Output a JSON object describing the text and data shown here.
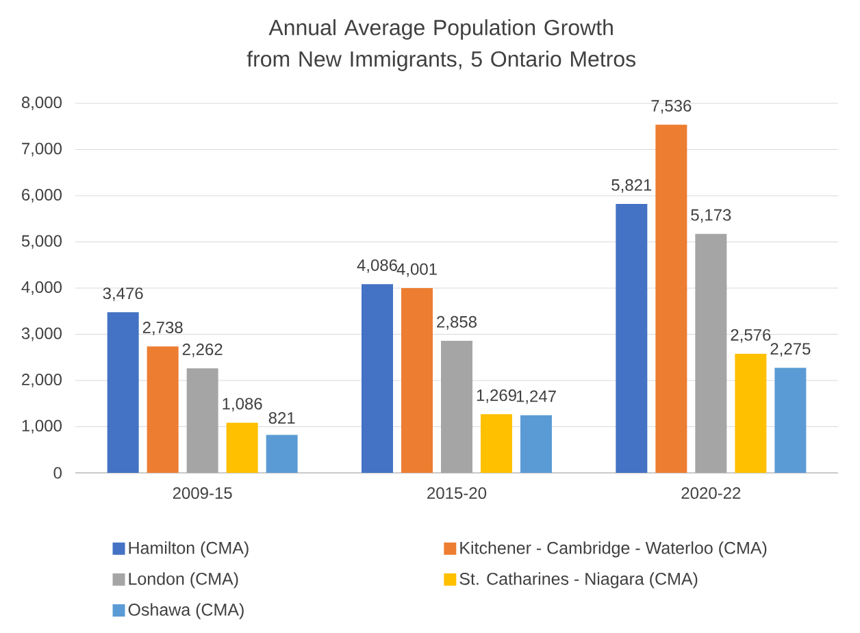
{
  "chart_data": {
    "type": "bar",
    "title": "Annual Average Population Growth from New Immigrants, 5 Ontario Metros",
    "categories": [
      "2009-15",
      "2015-20",
      "2020-22"
    ],
    "series": [
      {
        "name": "Hamilton (CMA)",
        "color": "#4472c4",
        "values": [
          3476,
          4086,
          5821
        ],
        "value_labels": [
          "3,476",
          "4,086",
          "5,821"
        ]
      },
      {
        "name": "Kitchener - Cambridge - Waterloo (CMA)",
        "color": "#ed7d31",
        "values": [
          2738,
          4001,
          7536
        ],
        "value_labels": [
          "2,738",
          "4,001",
          "7,536"
        ]
      },
      {
        "name": "London (CMA)",
        "color": "#a5a5a5",
        "values": [
          2262,
          2858,
          5173
        ],
        "value_labels": [
          "2,262",
          "2,858",
          "5,173"
        ]
      },
      {
        "name": "St. Catharines - Niagara (CMA)",
        "color": "#ffc000",
        "values": [
          1086,
          1269,
          2576
        ],
        "value_labels": [
          "1,086",
          "1,269",
          "2,576"
        ]
      },
      {
        "name": "Oshawa (CMA)",
        "color": "#5b9bd5",
        "values": [
          821,
          1247,
          2275
        ],
        "value_labels": [
          "821",
          "1,247",
          "2,275"
        ]
      }
    ],
    "ylim": [
      0,
      8000
    ],
    "yticks": [
      0,
      {
        "value": 1000,
        "label": "1,000"
      },
      {
        "value": 2000,
        "label": "2,000"
      },
      {
        "value": 3000,
        "label": "3,000"
      },
      {
        "value": 4000,
        "label": "4,000"
      },
      {
        "value": 5000,
        "label": "5,000"
      },
      {
        "value": 6000,
        "label": "6,000"
      },
      {
        "value": 7000,
        "label": "7,000"
      },
      {
        "value": 8000,
        "label": "8,000"
      }
    ],
    "grid": "y",
    "legend": "bottom"
  }
}
